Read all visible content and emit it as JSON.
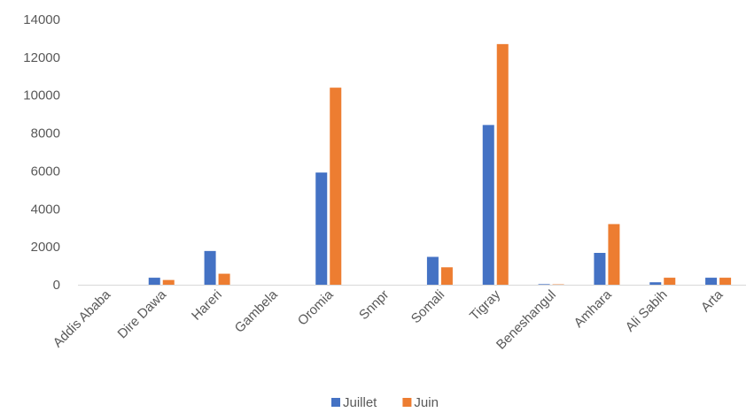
{
  "chart_data": {
    "type": "bar",
    "title": "",
    "xlabel": "",
    "ylabel": "",
    "ylim": [
      0,
      14000
    ],
    "yticks": [
      0,
      2000,
      4000,
      6000,
      8000,
      10000,
      12000,
      14000
    ],
    "grid": false,
    "legend": "bottom",
    "categories": [
      "Addis Ababa",
      "Dire Dawa",
      "Hareri",
      "Gambela",
      "Oromia",
      "Snnpr",
      "Somali",
      "Tigray",
      "Beneshangul",
      "Amhara",
      "Ali Sabih",
      "Arta"
    ],
    "series": [
      {
        "name": "Juillet",
        "color": "#4472C4",
        "values": [
          0,
          370,
          1780,
          0,
          5920,
          0,
          1470,
          8430,
          30,
          1680,
          130,
          370
        ]
      },
      {
        "name": "Juin",
        "color": "#ED7D31",
        "values": [
          0,
          250,
          580,
          0,
          10400,
          0,
          920,
          12700,
          20,
          3200,
          370,
          370
        ]
      }
    ]
  }
}
